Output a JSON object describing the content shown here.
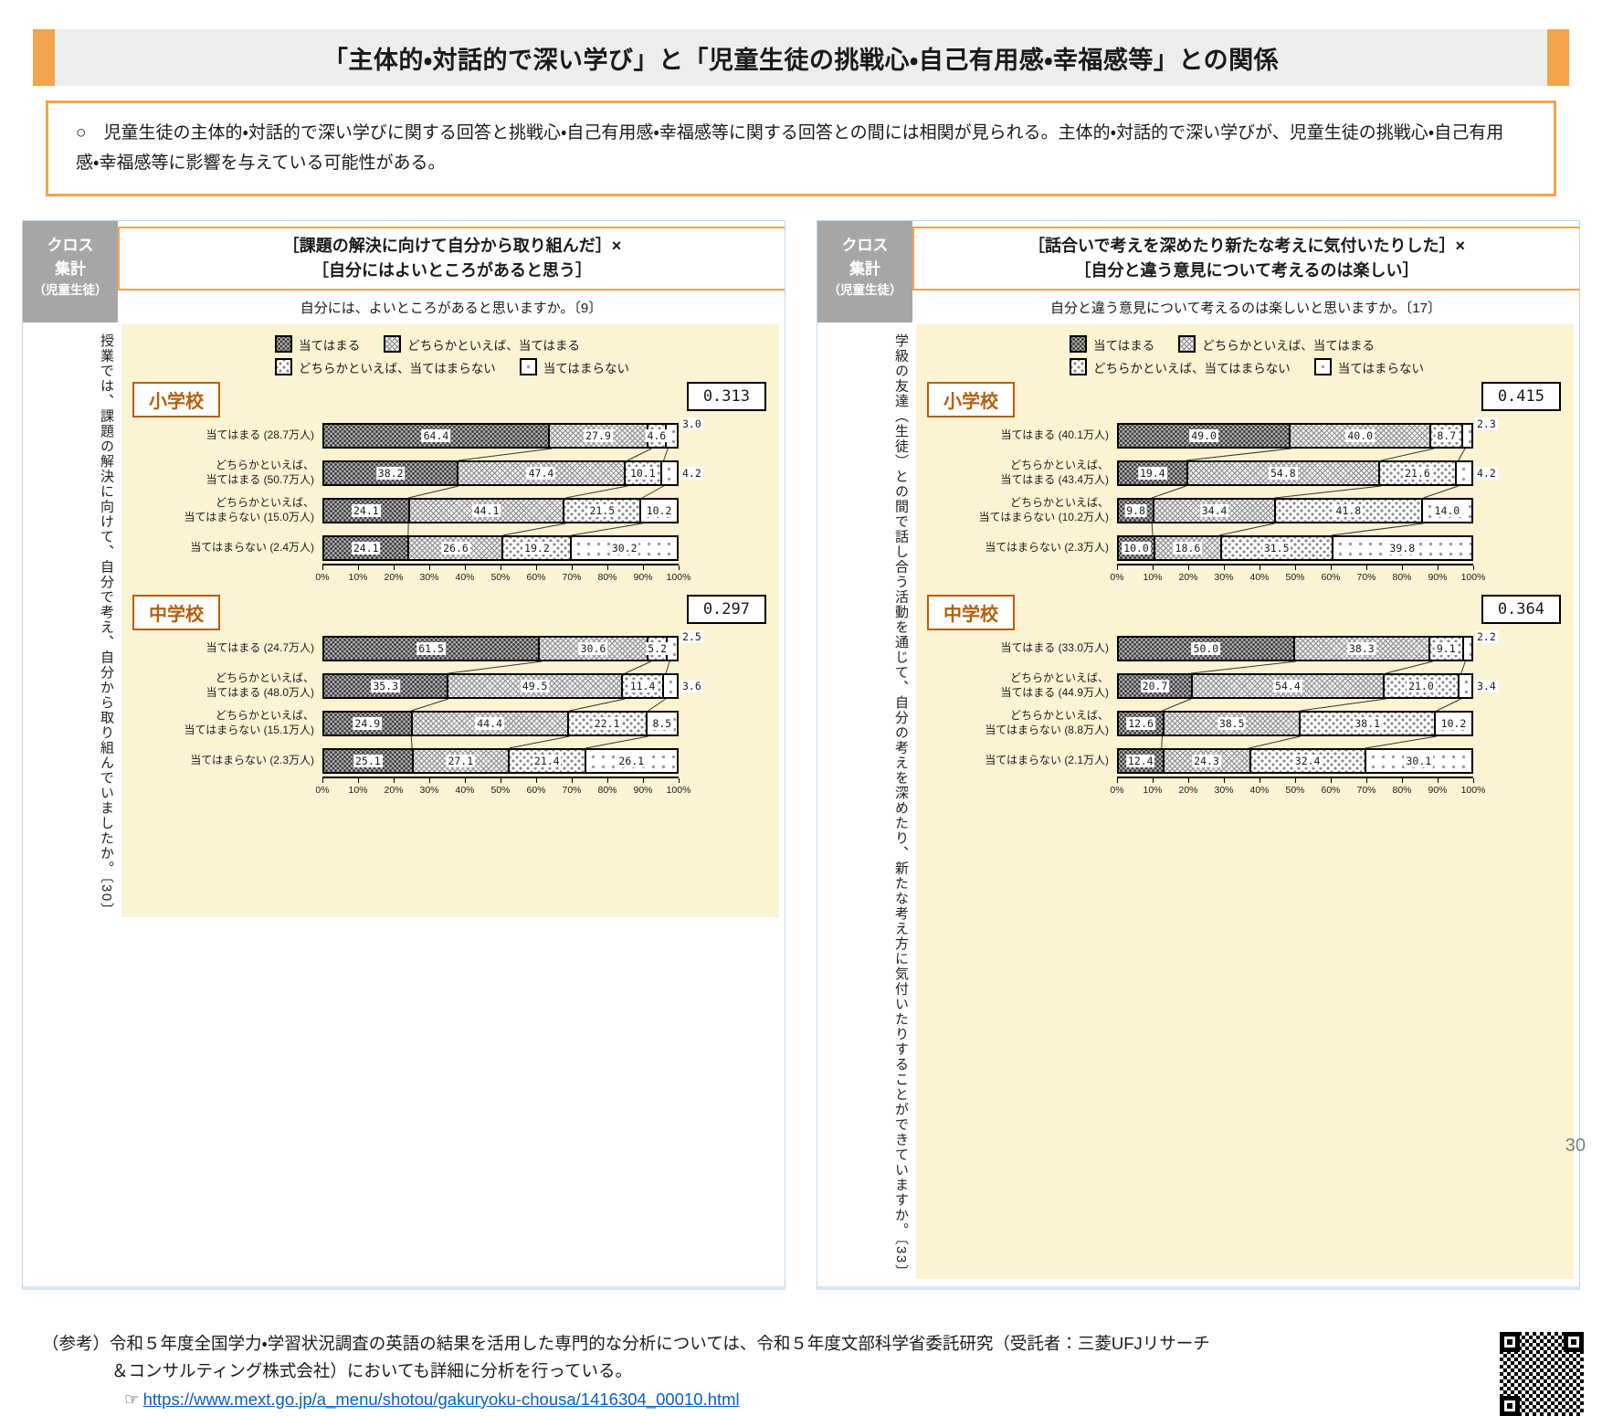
{
  "page": {
    "title": "「主体的・対話的で深い学び」と「児童生徒の挑戦心・自己有用感・幸福感等」との関係",
    "page_number": "30"
  },
  "summary": {
    "text": "○　児童生徒の主体的・対話的で深い学びに関する回答と挑戦心・自己有用感・幸福感等に関する回答との間には相関が見られる。主体的・対話的で深い学びが、児童生徒の挑戦心・自己有用感・幸福感等に影響を与えている可能性がある。"
  },
  "legend": [
    "当てはまる",
    "どちらかといえば、当てはまる",
    "どちらかといえば、当てはまらない",
    "当てはまらない"
  ],
  "axis_ticks": [
    "0%",
    "10%",
    "20%",
    "30%",
    "40%",
    "50%",
    "60%",
    "70%",
    "80%",
    "90%",
    "100%"
  ],
  "panels": [
    {
      "id": "left",
      "cross_lines": [
        "クロス",
        "集計",
        "（児童生徒）"
      ],
      "title_lines": [
        "［課題の解決に向けて自分から取り組んだ］×",
        "［自分にはよいところがあると思う］"
      ],
      "subtitle": "自分には、よいところがあると思いますか。〔9〕",
      "side_question": "授業では、課題の解決に向けて、自分で考え、自分から取り組んでいましたか。〔30〕",
      "chart_indexes": [
        0,
        1
      ]
    },
    {
      "id": "right",
      "cross_lines": [
        "クロス",
        "集計",
        "（児童生徒）"
      ],
      "title_lines": [
        "［話合いで考えを深めたり新たな考えに気付いたりした］×",
        "［自分と違う意見について考えるのは楽しい］"
      ],
      "subtitle": "自分と違う意見について考えるのは楽しいと思いますか。〔17〕",
      "side_question": "学級の友達（生徒）との間で話し合う活動を通じて、自分の考えを深めたり、新たな考え方に気付いたりすることができていますか。〔33〕",
      "chart_indexes": [
        2,
        3
      ]
    }
  ],
  "chart_data": [
    {
      "type": "bar",
      "stacked": true,
      "orientation": "horizontal",
      "school": "小学校",
      "correlation": "0.313",
      "series_labels": [
        "当てはまる",
        "どちらかといえば、当てはまる",
        "どちらかといえば、当てはまらない",
        "当てはまらない"
      ],
      "categories": [
        "当てはまる (28.7万人)",
        "どちらかといえば、\n当てはまる (50.7万人)",
        "どちらかといえば、\n当てはまらない (15.0万人)",
        "当てはまらない (2.4万人)"
      ],
      "values": [
        [
          64.4,
          27.9,
          4.6,
          3.0
        ],
        [
          38.2,
          47.4,
          10.1,
          4.2
        ],
        [
          24.1,
          44.1,
          21.5,
          10.2
        ],
        [
          24.1,
          26.6,
          19.2,
          30.2
        ]
      ],
      "xlim": [
        0,
        100
      ]
    },
    {
      "type": "bar",
      "stacked": true,
      "orientation": "horizontal",
      "school": "中学校",
      "correlation": "0.297",
      "series_labels": [
        "当てはまる",
        "どちらかといえば、当てはまる",
        "どちらかといえば、当てはまらない",
        "当てはまらない"
      ],
      "categories": [
        "当てはまる (24.7万人)",
        "どちらかといえば、\n当てはまる (48.0万人)",
        "どちらかといえば、\n当てはまらない (15.1万人)",
        "当てはまらない (2.3万人)"
      ],
      "values": [
        [
          61.5,
          30.6,
          5.2,
          2.5
        ],
        [
          35.3,
          49.5,
          11.4,
          3.6
        ],
        [
          24.9,
          44.4,
          22.1,
          8.5
        ],
        [
          25.1,
          27.1,
          21.4,
          26.1
        ]
      ],
      "xlim": [
        0,
        100
      ]
    },
    {
      "type": "bar",
      "stacked": true,
      "orientation": "horizontal",
      "school": "小学校",
      "correlation": "0.415",
      "series_labels": [
        "当てはまる",
        "どちらかといえば、当てはまる",
        "どちらかといえば、当てはまらない",
        "当てはまらない"
      ],
      "categories": [
        "当てはまる (40.1万人)",
        "どちらかといえば、\n当てはまる (43.4万人)",
        "どちらかといえば、\n当てはまらない (10.2万人)",
        "当てはまらない (2.3万人)"
      ],
      "values": [
        [
          49.0,
          40.0,
          8.7,
          2.3
        ],
        [
          19.4,
          54.8,
          21.6,
          4.2
        ],
        [
          9.8,
          34.4,
          41.8,
          14.0
        ],
        [
          10.0,
          18.6,
          31.5,
          39.8
        ]
      ],
      "xlim": [
        0,
        100
      ]
    },
    {
      "type": "bar",
      "stacked": true,
      "orientation": "horizontal",
      "school": "中学校",
      "correlation": "0.364",
      "series_labels": [
        "当てはまる",
        "どちらかといえば、当てはまる",
        "どちらかといえば、当てはまらない",
        "当てはまらない"
      ],
      "categories": [
        "当てはまる (33.0万人)",
        "どちらかといえば、\n当てはまる (44.9万人)",
        "どちらかといえば、\n当てはまらない (8.8万人)",
        "当てはまらない (2.1万人)"
      ],
      "values": [
        [
          50.0,
          38.3,
          9.1,
          2.2
        ],
        [
          20.7,
          54.4,
          21.0,
          3.4
        ],
        [
          12.6,
          38.5,
          38.1,
          10.2
        ],
        [
          12.4,
          24.3,
          32.4,
          30.1
        ]
      ],
      "xlim": [
        0,
        100
      ]
    }
  ],
  "footer": {
    "line1": "（参考）令和５年度全国学力・学習状況調査の英語の結果を活用した専門的な分析については、令和５年度文部科学省委託研究（受託者：三菱UFJリサーチ",
    "line2": "＆コンサルティング株式会社）においても詳細に分析を行っている。",
    "pointer": "☞",
    "link": "https://www.mext.go.jp/a_menu/shotou/gakuryoku-chousa/1416304_00010.html"
  },
  "colors": {
    "accent_orange": "#F2A44C",
    "school_label_brown": "#B45F0B",
    "chart_background_cream": "#FCF3D3",
    "cross_box_gray": "#A6A6A6",
    "link_blue": "#0563C1",
    "panel_border_blue": "#BDD7EE"
  }
}
